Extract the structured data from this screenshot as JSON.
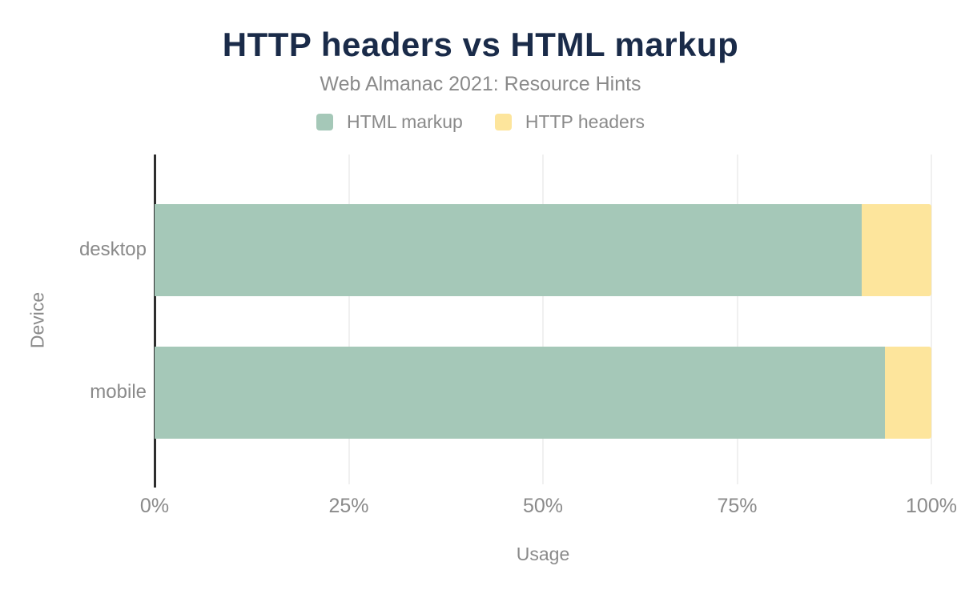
{
  "chart_data": {
    "type": "bar",
    "orientation": "horizontal",
    "stacked": true,
    "title": "HTTP headers vs HTML markup",
    "subtitle": "Web Almanac 2021: Resource Hints",
    "categories": [
      "desktop",
      "mobile"
    ],
    "series": [
      {
        "name": "HTML markup",
        "color": "#a5c8b8",
        "values": [
          91,
          94
        ]
      },
      {
        "name": "HTTP headers",
        "color": "#fde59c",
        "values": [
          9,
          6
        ]
      }
    ],
    "xlabel": "Usage",
    "ylabel": "Device",
    "xlim": [
      0,
      100
    ],
    "x_tick_values": [
      0,
      25,
      50,
      75,
      100
    ],
    "x_tick_labels": [
      "0%",
      "25%",
      "50%",
      "75%",
      "100%"
    ],
    "grid": "vertical",
    "legend_position": "top-center",
    "colors": {
      "title": "#1a2b49",
      "label_text": "#8a8a8a",
      "gridline": "#f0f0f0",
      "axis_line": "#2e2e2e",
      "background": "#ffffff"
    }
  }
}
